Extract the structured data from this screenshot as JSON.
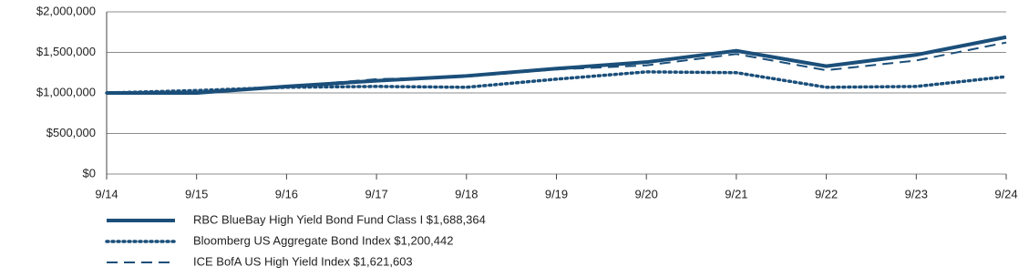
{
  "chart_data": {
    "type": "line",
    "categories": [
      "9/14",
      "9/15",
      "9/16",
      "9/17",
      "9/18",
      "9/19",
      "9/20",
      "9/21",
      "9/22",
      "9/23",
      "9/24"
    ],
    "ylim": [
      0,
      2000000
    ],
    "yticks": [
      {
        "value": 0,
        "label": "$0"
      },
      {
        "value": 500000,
        "label": "$500,000"
      },
      {
        "value": 1000000,
        "label": "$1,000,000"
      },
      {
        "value": 1500000,
        "label": "$1,500,000"
      },
      {
        "value": 2000000,
        "label": "$2,000,000"
      }
    ],
    "grid": true,
    "series": [
      {
        "name": "RBC BlueBay High Yield Bond Fund Class I $1,688,364",
        "color": "#1b4f7a",
        "style": "solid",
        "values": [
          1000000,
          1000000,
          1080000,
          1150000,
          1210000,
          1300000,
          1380000,
          1520000,
          1330000,
          1470000,
          1688364
        ]
      },
      {
        "name": "Bloomberg US Aggregate Bond Index $1,200,442",
        "color": "#1b4f7a",
        "style": "dotted",
        "values": [
          1000000,
          1030000,
          1070000,
          1080000,
          1070000,
          1170000,
          1260000,
          1250000,
          1070000,
          1080000,
          1200442
        ]
      },
      {
        "name": "ICE BofA US High Yield Index $1,621,603",
        "color": "#1b4f7a",
        "style": "dashed",
        "values": [
          1000000,
          990000,
          1080000,
          1170000,
          1200000,
          1290000,
          1340000,
          1480000,
          1280000,
          1400000,
          1621603
        ]
      }
    ]
  }
}
